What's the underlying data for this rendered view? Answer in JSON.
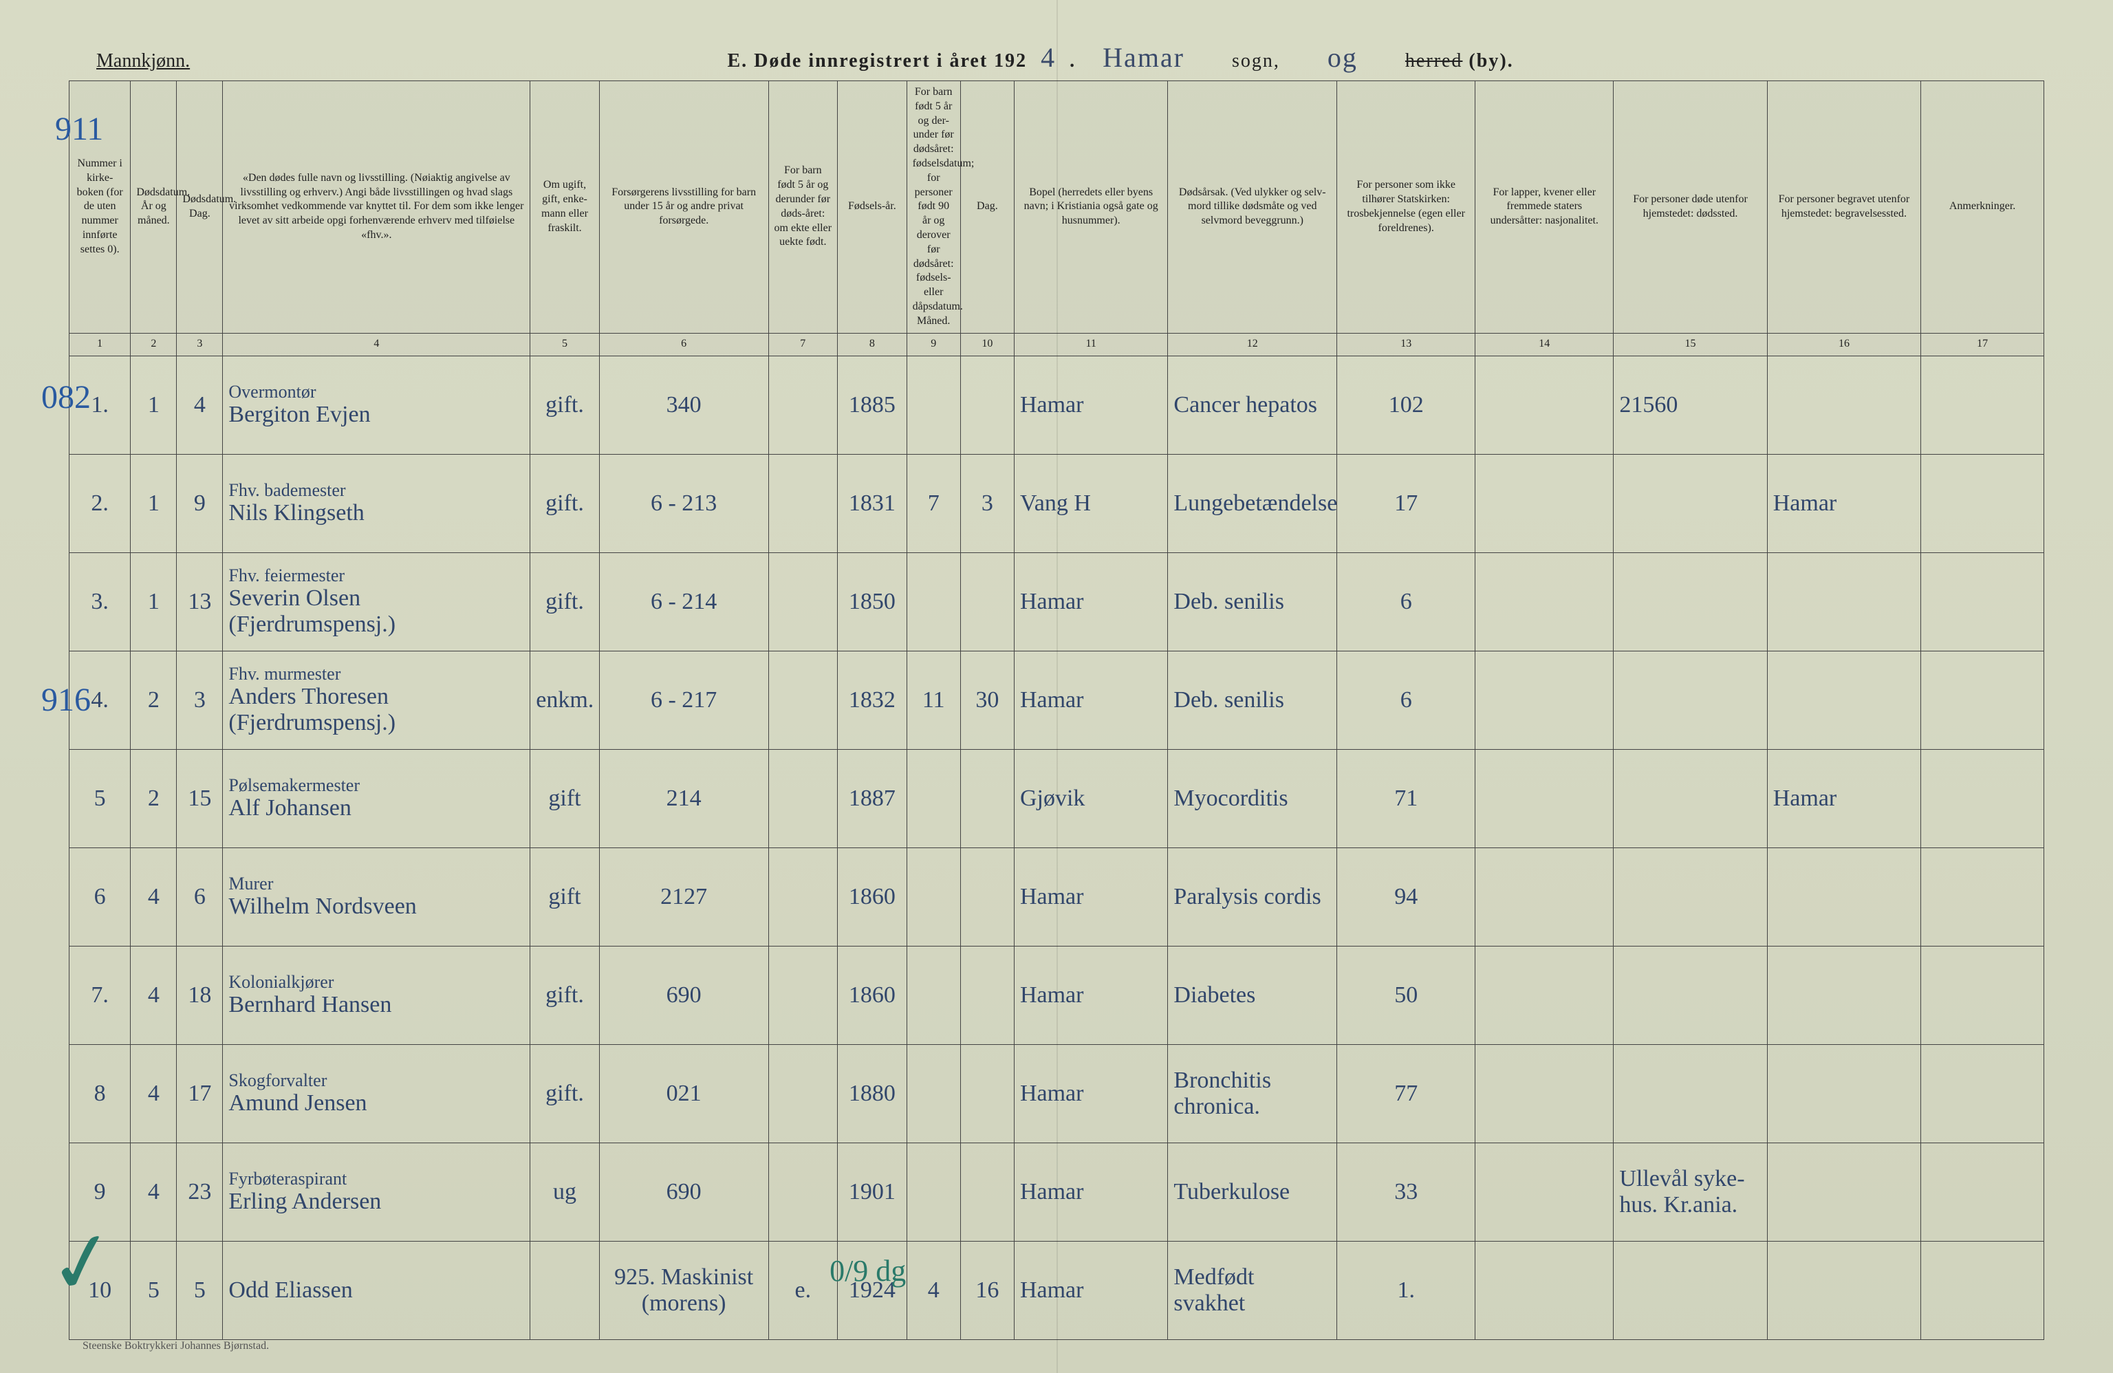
{
  "header": {
    "left": "Mannkjønn.",
    "title_prefix": "E.  Døde innregistrert i året 192",
    "title_year_hand": "4",
    "title_suffix": ".",
    "sogn_hand": "Hamar",
    "sogn_label": "sogn,",
    "og_hand": "og",
    "herred_strike": "herred",
    "by_label": "(by)."
  },
  "side_numbers": {
    "n1": "911",
    "n2": "082",
    "n3": "916"
  },
  "checkmark": "✓",
  "columns": [
    "Nummer i kirke-boken (for de uten nummer innførte settes 0).",
    "Dødsdatum. År og måned.",
    "Dødsdatum. Dag.",
    "«Den dødes fulle navn og livsstilling. (Nøiaktig angivelse av livsstilling og erhverv.) Angi både livsstillingen og hvad slags virksomhet vedkommende var knyttet til. For dem som ikke lenger levet av sitt arbeide opgi forhenværende erhverv med tilføielse «fhv.».",
    "Om ugift, gift, enke-mann eller fraskilt.",
    "Forsørgerens livsstilling for barn under 15 år og andre privat forsørgede.",
    "For barn født 5 år og derunder før døds-året: om ekte eller uekte født.",
    "Fødsels-år.",
    "For barn født 5 år og der-under før dødsåret: fødselsdatum; for personer født 90 år og derover før dødsåret: fødsels- eller dåpsdatum. Måned.",
    "Dag.",
    "Bopel (herredets eller byens navn; i Kristiania også gate og husnummer).",
    "Dødsårsak. (Ved ulykker og selv-mord tillike dødsmåte og ved selvmord beveggrunn.)",
    "For personer som ikke tilhører Statskirken: trosbekjennelse (egen eller foreldrenes).",
    "For lapper, kvener eller fremmede staters undersåtter: nasjonalitet.",
    "For personer døde utenfor hjemstedet: dødssted.",
    "For personer begravet utenfor hjemstedet: begravelsessted.",
    "Anmerkninger."
  ],
  "colnums": [
    "1",
    "2",
    "3",
    "4",
    "5",
    "6",
    "7",
    "8",
    "9",
    "10",
    "11",
    "12",
    "13",
    "14",
    "15",
    "16",
    "17"
  ],
  "rows": [
    {
      "n": "1.",
      "aar": "1",
      "dag": "4",
      "occ": "Overmontør",
      "name": "Bergiton Evjen",
      "civil": "gift.",
      "fors": "340",
      "ekte": "",
      "faar": "1885",
      "fm": "",
      "fd": "",
      "bopel": "Hamar",
      "cause": "Cancer hepatos",
      "col13": "102",
      "col14": "",
      "col15": "21560",
      "col16": "",
      "col17": ""
    },
    {
      "n": "2.",
      "aar": "1",
      "dag": "9",
      "occ": "Fhv. bademester",
      "name": "Nils Klingseth",
      "civil": "gift.",
      "fors": "6 - 213",
      "ekte": "",
      "faar": "1831",
      "fm": "7",
      "fd": "3",
      "bopel": "Vang H",
      "cause": "Lungebetændelse",
      "col13": "17",
      "col14": "",
      "col15": "",
      "col16": "Hamar",
      "col17": ""
    },
    {
      "n": "3.",
      "aar": "1",
      "dag": "13",
      "occ": "Fhv. feiermester",
      "name": "Severin Olsen  (Fjerdrumspensj.)",
      "civil": "gift.",
      "fors": "6 - 214",
      "ekte": "",
      "faar": "1850",
      "fm": "",
      "fd": "",
      "bopel": "Hamar",
      "cause": "Deb. senilis",
      "col13": "6",
      "col14": "",
      "col15": "",
      "col16": "",
      "col17": ""
    },
    {
      "n": "4.",
      "aar": "2",
      "dag": "3",
      "occ": "Fhv. murmester",
      "name": "Anders Thoresen  (Fjerdrumspensj.)",
      "civil": "enkm.",
      "fors": "6 - 217",
      "ekte": "",
      "faar": "1832",
      "fm": "11",
      "fd": "30",
      "bopel": "Hamar",
      "cause": "Deb. senilis",
      "col13": "6",
      "col14": "",
      "col15": "",
      "col16": "",
      "col17": ""
    },
    {
      "n": "5",
      "aar": "2",
      "dag": "15",
      "occ": "Pølsemakermester",
      "name": "Alf Johansen",
      "civil": "gift",
      "fors": "214",
      "ekte": "",
      "faar": "1887",
      "fm": "",
      "fd": "",
      "bopel": "Gjøvik",
      "cause": "Myocorditis",
      "col13": "71",
      "col14": "",
      "col15": "",
      "col16": "Hamar",
      "col17": ""
    },
    {
      "n": "6",
      "aar": "4",
      "dag": "6",
      "occ": "Murer",
      "name": "Wilhelm Nordsveen",
      "civil": "gift",
      "fors": "2127",
      "ekte": "",
      "faar": "1860",
      "fm": "",
      "fd": "",
      "bopel": "Hamar",
      "cause": "Paralysis cordis",
      "col13": "94",
      "col14": "",
      "col15": "",
      "col16": "",
      "col17": ""
    },
    {
      "n": "7.",
      "aar": "4",
      "dag": "18",
      "occ": "Kolonialkjører",
      "name": "Bernhard Hansen",
      "civil": "gift.",
      "fors": "690",
      "ekte": "",
      "faar": "1860",
      "fm": "",
      "fd": "",
      "bopel": "Hamar",
      "cause": "Diabetes",
      "col13": "50",
      "col14": "",
      "col15": "",
      "col16": "",
      "col17": ""
    },
    {
      "n": "8",
      "aar": "4",
      "dag": "17",
      "occ": "Skogforvalter",
      "name": "Amund Jensen",
      "civil": "gift.",
      "fors": "021",
      "ekte": "",
      "faar": "1880",
      "fm": "",
      "fd": "",
      "bopel": "Hamar",
      "cause": "Bronchitis chronica.",
      "col13": "77",
      "col14": "",
      "col15": "",
      "col17": ""
    },
    {
      "n": "9",
      "aar": "4",
      "dag": "23",
      "occ": "Fyrbøteraspirant",
      "name": "Erling Andersen",
      "civil": "ug",
      "fors": "690",
      "ekte": "",
      "faar": "1901",
      "fm": "",
      "fd": "",
      "bopel": "Hamar",
      "cause": "Tuberkulose",
      "col13": "33",
      "col14": "",
      "col15": "Ullevål syke-hus. Kr.ania.",
      "col16": "",
      "col17": ""
    },
    {
      "n": "10",
      "aar": "5",
      "dag": "5",
      "occ": "",
      "name": "Odd Eliassen",
      "civil": "",
      "fors": "925. Maskinist (morens)",
      "ekte": "e.",
      "faar": "1924",
      "fm": "4",
      "fd": "16",
      "bopel": "Hamar",
      "cause": "Medfødt svakhet",
      "col13": "1.",
      "col14": "",
      "col15": "",
      "col16": "",
      "col17": ""
    }
  ],
  "row10_overlay": "0/9 dg",
  "footer": "Steenske Boktrykkeri Johannes Bjørnstad."
}
